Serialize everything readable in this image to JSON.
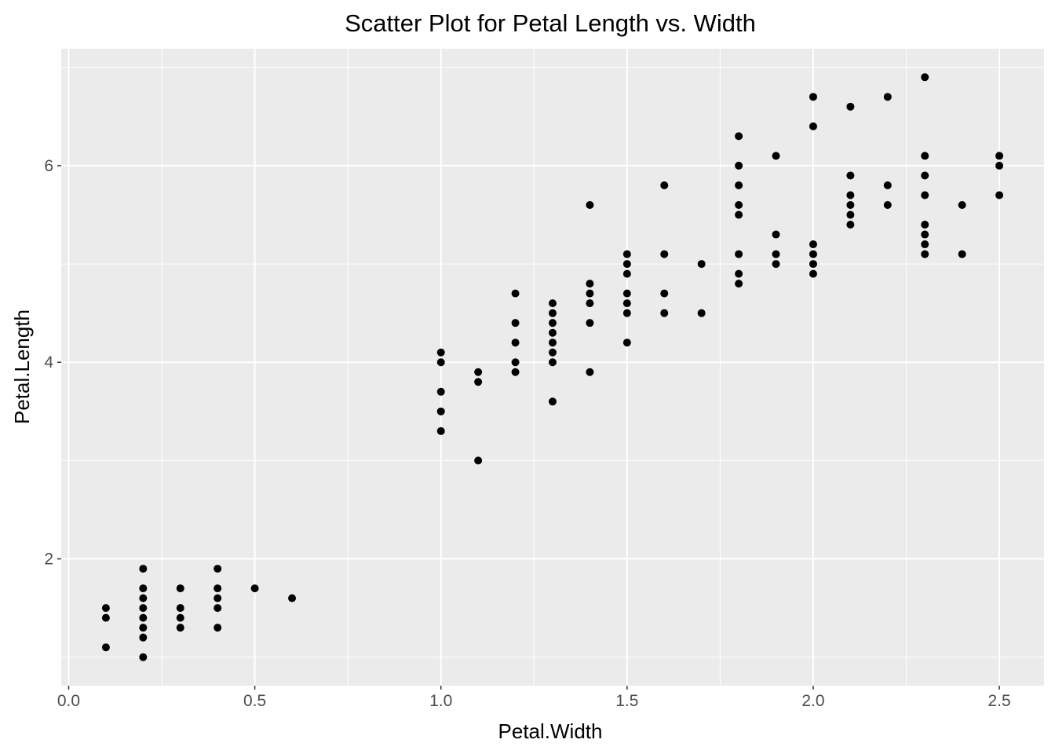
{
  "chart_data": {
    "type": "scatter",
    "title": "Scatter Plot for Petal Length vs. Width",
    "xlabel": "Petal.Width",
    "ylabel": "Petal.Length",
    "xlim": [
      -0.02,
      2.62
    ],
    "ylim": [
      0.71,
      7.19
    ],
    "grid": true,
    "panel_background": "#EBEBEB",
    "grid_color": "#FFFFFF",
    "point_color": "#000000",
    "x_ticks": [
      0.0,
      0.5,
      1.0,
      1.5,
      2.0,
      2.5
    ],
    "x_tick_labels": [
      "0.0",
      "0.5",
      "1.0",
      "1.5",
      "2.0",
      "2.5"
    ],
    "x_minor_ticks": [
      0.25,
      0.75,
      1.25,
      1.75,
      2.25
    ],
    "y_ticks": [
      2,
      4,
      6
    ],
    "y_tick_labels": [
      "2",
      "4",
      "6"
    ],
    "y_minor_ticks": [
      1,
      3,
      5,
      7
    ],
    "points": [
      {
        "x": 0.1,
        "y": 1.1
      },
      {
        "x": 0.1,
        "y": 1.4
      },
      {
        "x": 0.1,
        "y": 1.5
      },
      {
        "x": 0.2,
        "y": 1.0
      },
      {
        "x": 0.2,
        "y": 1.2
      },
      {
        "x": 0.2,
        "y": 1.3
      },
      {
        "x": 0.2,
        "y": 1.4
      },
      {
        "x": 0.2,
        "y": 1.5
      },
      {
        "x": 0.2,
        "y": 1.6
      },
      {
        "x": 0.2,
        "y": 1.7
      },
      {
        "x": 0.2,
        "y": 1.9
      },
      {
        "x": 0.3,
        "y": 1.3
      },
      {
        "x": 0.3,
        "y": 1.4
      },
      {
        "x": 0.3,
        "y": 1.5
      },
      {
        "x": 0.3,
        "y": 1.7
      },
      {
        "x": 0.4,
        "y": 1.3
      },
      {
        "x": 0.4,
        "y": 1.5
      },
      {
        "x": 0.4,
        "y": 1.6
      },
      {
        "x": 0.4,
        "y": 1.7
      },
      {
        "x": 0.4,
        "y": 1.9
      },
      {
        "x": 0.5,
        "y": 1.7
      },
      {
        "x": 0.6,
        "y": 1.6
      },
      {
        "x": 1.0,
        "y": 3.3
      },
      {
        "x": 1.0,
        "y": 3.5
      },
      {
        "x": 1.0,
        "y": 3.7
      },
      {
        "x": 1.0,
        "y": 4.0
      },
      {
        "x": 1.0,
        "y": 4.1
      },
      {
        "x": 1.1,
        "y": 3.0
      },
      {
        "x": 1.1,
        "y": 3.8
      },
      {
        "x": 1.1,
        "y": 3.9
      },
      {
        "x": 1.2,
        "y": 3.9
      },
      {
        "x": 1.2,
        "y": 4.0
      },
      {
        "x": 1.2,
        "y": 4.2
      },
      {
        "x": 1.2,
        "y": 4.4
      },
      {
        "x": 1.2,
        "y": 4.7
      },
      {
        "x": 1.3,
        "y": 3.6
      },
      {
        "x": 1.3,
        "y": 4.0
      },
      {
        "x": 1.3,
        "y": 4.1
      },
      {
        "x": 1.3,
        "y": 4.2
      },
      {
        "x": 1.3,
        "y": 4.3
      },
      {
        "x": 1.3,
        "y": 4.4
      },
      {
        "x": 1.3,
        "y": 4.5
      },
      {
        "x": 1.3,
        "y": 4.6
      },
      {
        "x": 1.4,
        "y": 3.9
      },
      {
        "x": 1.4,
        "y": 4.4
      },
      {
        "x": 1.4,
        "y": 4.6
      },
      {
        "x": 1.4,
        "y": 4.7
      },
      {
        "x": 1.4,
        "y": 4.8
      },
      {
        "x": 1.4,
        "y": 5.6
      },
      {
        "x": 1.5,
        "y": 4.2
      },
      {
        "x": 1.5,
        "y": 4.5
      },
      {
        "x": 1.5,
        "y": 4.6
      },
      {
        "x": 1.5,
        "y": 4.7
      },
      {
        "x": 1.5,
        "y": 4.9
      },
      {
        "x": 1.5,
        "y": 5.0
      },
      {
        "x": 1.5,
        "y": 5.1
      },
      {
        "x": 1.6,
        "y": 4.5
      },
      {
        "x": 1.6,
        "y": 4.7
      },
      {
        "x": 1.6,
        "y": 5.1
      },
      {
        "x": 1.6,
        "y": 5.8
      },
      {
        "x": 1.7,
        "y": 4.5
      },
      {
        "x": 1.7,
        "y": 5.0
      },
      {
        "x": 1.8,
        "y": 4.8
      },
      {
        "x": 1.8,
        "y": 4.9
      },
      {
        "x": 1.8,
        "y": 5.1
      },
      {
        "x": 1.8,
        "y": 5.5
      },
      {
        "x": 1.8,
        "y": 5.6
      },
      {
        "x": 1.8,
        "y": 5.8
      },
      {
        "x": 1.8,
        "y": 6.0
      },
      {
        "x": 1.8,
        "y": 6.3
      },
      {
        "x": 1.9,
        "y": 5.0
      },
      {
        "x": 1.9,
        "y": 5.1
      },
      {
        "x": 1.9,
        "y": 5.3
      },
      {
        "x": 1.9,
        "y": 6.1
      },
      {
        "x": 2.0,
        "y": 4.9
      },
      {
        "x": 2.0,
        "y": 5.0
      },
      {
        "x": 2.0,
        "y": 5.1
      },
      {
        "x": 2.0,
        "y": 5.2
      },
      {
        "x": 2.0,
        "y": 6.4
      },
      {
        "x": 2.0,
        "y": 6.7
      },
      {
        "x": 2.1,
        "y": 5.4
      },
      {
        "x": 2.1,
        "y": 5.5
      },
      {
        "x": 2.1,
        "y": 5.6
      },
      {
        "x": 2.1,
        "y": 5.7
      },
      {
        "x": 2.1,
        "y": 5.9
      },
      {
        "x": 2.1,
        "y": 6.6
      },
      {
        "x": 2.2,
        "y": 5.6
      },
      {
        "x": 2.2,
        "y": 5.8
      },
      {
        "x": 2.2,
        "y": 6.7
      },
      {
        "x": 2.3,
        "y": 5.1
      },
      {
        "x": 2.3,
        "y": 5.2
      },
      {
        "x": 2.3,
        "y": 5.3
      },
      {
        "x": 2.3,
        "y": 5.4
      },
      {
        "x": 2.3,
        "y": 5.7
      },
      {
        "x": 2.3,
        "y": 5.9
      },
      {
        "x": 2.3,
        "y": 6.1
      },
      {
        "x": 2.3,
        "y": 6.9
      },
      {
        "x": 2.4,
        "y": 5.1
      },
      {
        "x": 2.4,
        "y": 5.6
      },
      {
        "x": 2.5,
        "y": 5.7
      },
      {
        "x": 2.5,
        "y": 6.0
      },
      {
        "x": 2.5,
        "y": 6.1
      }
    ]
  }
}
